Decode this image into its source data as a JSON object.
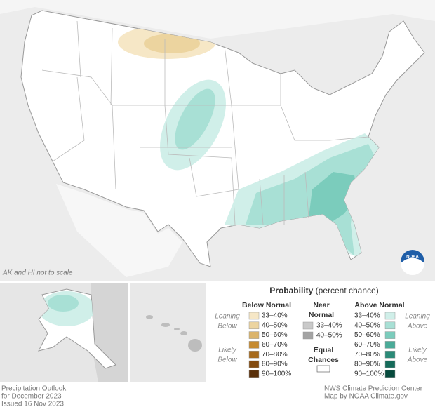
{
  "map": {
    "scale_note": "AK and HI not to scale",
    "logo": "NOAA"
  },
  "legend": {
    "title": "Probability",
    "subtitle": "(percent chance)",
    "below": {
      "name": "Below Normal",
      "leaning": [
        "Leaning",
        "Below"
      ],
      "likely": [
        "Likely",
        "Below"
      ],
      "items": [
        {
          "label": "33–40%",
          "color": "#f6e7c6"
        },
        {
          "label": "40–50%",
          "color": "#ecd49f"
        },
        {
          "label": "50–60%",
          "color": "#dbb46b"
        },
        {
          "label": "60–70%",
          "color": "#c68b30"
        },
        {
          "label": "70–80%",
          "color": "#a66a1c"
        },
        {
          "label": "80–90%",
          "color": "#834b0f"
        },
        {
          "label": "90–100%",
          "color": "#5a300a"
        }
      ]
    },
    "near": {
      "name": [
        "Near",
        "Normal"
      ],
      "items": [
        {
          "label": "33–40%",
          "color": "#c9c9c9"
        },
        {
          "label": "40–50%",
          "color": "#a3a3a3"
        }
      ]
    },
    "equal": [
      "Equal",
      "Chances"
    ],
    "above": {
      "name": "Above Normal",
      "leaning": [
        "Leaning",
        "Above"
      ],
      "likely": [
        "Likely",
        "Above"
      ],
      "items": [
        {
          "label": "33–40%",
          "color": "#d0efe9"
        },
        {
          "label": "40–50%",
          "color": "#a8e0d5"
        },
        {
          "label": "50–60%",
          "color": "#7bccbc"
        },
        {
          "label": "60–70%",
          "color": "#4aab98"
        },
        {
          "label": "70–80%",
          "color": "#2a8a77"
        },
        {
          "label": "80–90%",
          "color": "#156b5a"
        },
        {
          "label": "90–100%",
          "color": "#064a3d"
        }
      ]
    }
  },
  "footer": {
    "left": [
      "Precipitation Outlook",
      "for December 2023",
      "Issued 16 Nov 2023"
    ],
    "right": [
      "NWS Climate Prediction Center",
      "Map by NOAA Climate.gov"
    ]
  }
}
